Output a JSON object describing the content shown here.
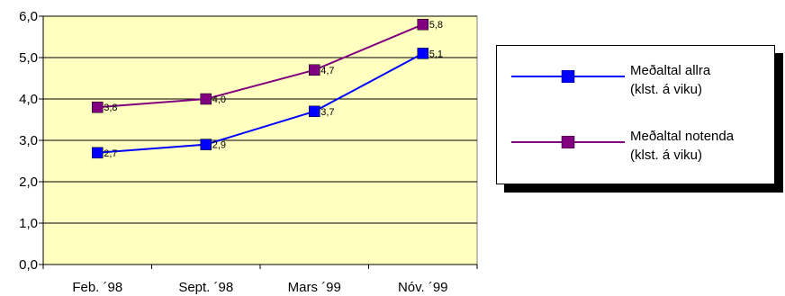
{
  "chart_data": {
    "type": "line",
    "categories": [
      "Feb. ´98",
      "Sept. ´98",
      "Mars ´99",
      "Nóv. ´99"
    ],
    "ylim": [
      0,
      6
    ],
    "yticks": [
      "0,0",
      "1,0",
      "2,0",
      "3,0",
      "4,0",
      "5,0",
      "6,0"
    ],
    "grid": true,
    "legend_position": "right",
    "series": [
      {
        "name_lines": [
          "Meðaltal allra",
          "(klst. á viku)"
        ],
        "values": [
          2.7,
          2.9,
          3.7,
          5.1
        ],
        "labels": [
          "2,7",
          "2,9",
          "3,7",
          "5,1"
        ],
        "color": "#0000ff",
        "marker_color": "#0000ff"
      },
      {
        "name_lines": [
          "Meðaltal notenda",
          "(klst. á viku)"
        ],
        "values": [
          3.8,
          4.0,
          4.7,
          5.8
        ],
        "labels": [
          "3,8",
          "4,0",
          "4,7",
          "5,8"
        ],
        "color": "#800080",
        "marker_color": "#800080"
      }
    ],
    "plot_background": "#ffffc0"
  }
}
